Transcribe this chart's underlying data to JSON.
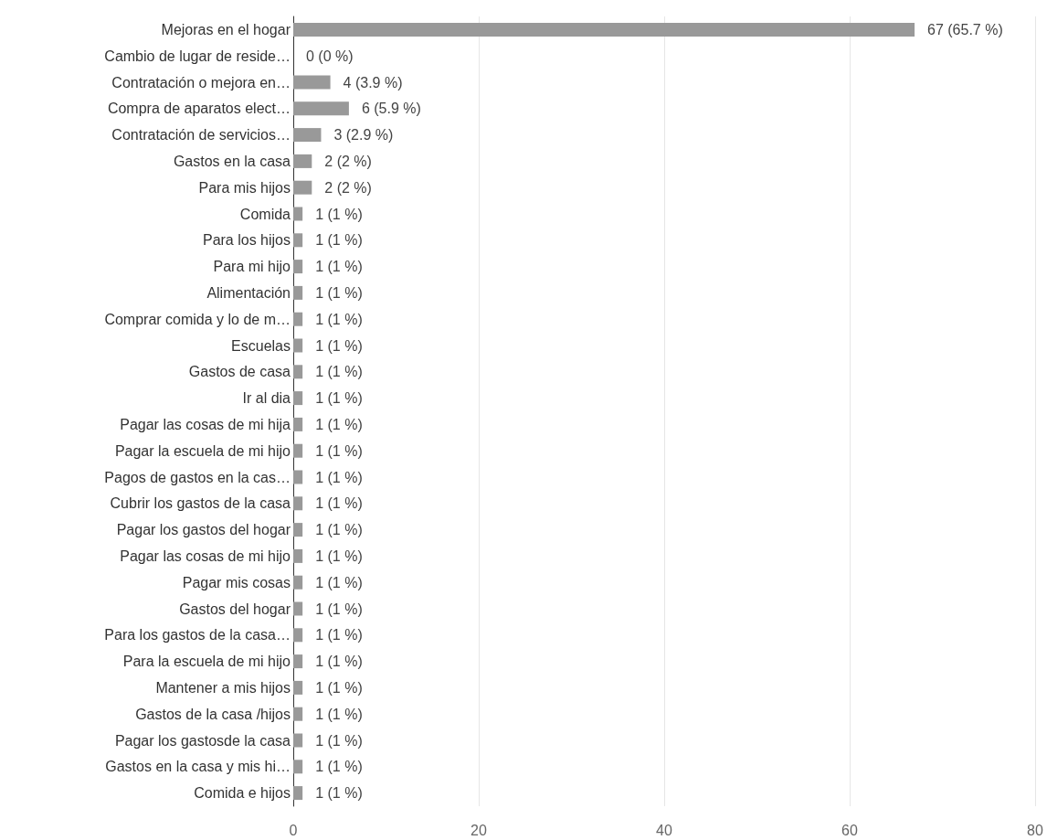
{
  "chart_data": {
    "type": "bar",
    "orientation": "horizontal",
    "categories": [
      "Mejoras en el hogar",
      "Cambio de lugar de reside…",
      "Contratación o mejora en…",
      "Compra de aparatos elect…",
      "Contratación de servicios…",
      "Gastos en la casa",
      "Para mis hijos",
      "Comida",
      "Para los hijos",
      "Para mi hijo",
      "Alimentación",
      "Comprar comida y lo de m…",
      "Escuelas",
      "Gastos de casa",
      "Ir al dia",
      "Pagar las cosas de mi hija",
      "Pagar la escuela de mi hijo",
      "Pagos de gastos en la cas…",
      "Cubrir los gastos de la casa",
      "Pagar los gastos del hogar",
      "Pagar las cosas de mi hijo",
      "Pagar mis cosas",
      "Gastos del hogar",
      "Para los gastos de la casa…",
      "Para la escuela de mi hijo",
      "Mantener a mis hijos",
      "Gastos de la casa /hijos",
      "Pagar los gastosde la casa",
      "Gastos en la casa y mis hi…",
      "Comida e hijos"
    ],
    "values": [
      67,
      0,
      4,
      6,
      3,
      2,
      2,
      1,
      1,
      1,
      1,
      1,
      1,
      1,
      1,
      1,
      1,
      1,
      1,
      1,
      1,
      1,
      1,
      1,
      1,
      1,
      1,
      1,
      1,
      1
    ],
    "value_labels": [
      "67 (65.7 %)",
      "0 (0 %)",
      "4 (3.9 %)",
      "6 (5.9 %)",
      "3 (2.9 %)",
      "2 (2 %)",
      "2 (2 %)",
      "1 (1 %)",
      "1 (1 %)",
      "1 (1 %)",
      "1 (1 %)",
      "1 (1 %)",
      "1 (1 %)",
      "1 (1 %)",
      "1 (1 %)",
      "1 (1 %)",
      "1 (1 %)",
      "1 (1 %)",
      "1 (1 %)",
      "1 (1 %)",
      "1 (1 %)",
      "1 (1 %)",
      "1 (1 %)",
      "1 (1 %)",
      "1 (1 %)",
      "1 (1 %)",
      "1 (1 %)",
      "1 (1 %)",
      "1 (1 %)",
      "1 (1 %)"
    ],
    "color": "#999999",
    "xlim": [
      0,
      80
    ],
    "xticks": [
      0,
      20,
      40,
      60,
      80
    ],
    "grid": "x"
  }
}
